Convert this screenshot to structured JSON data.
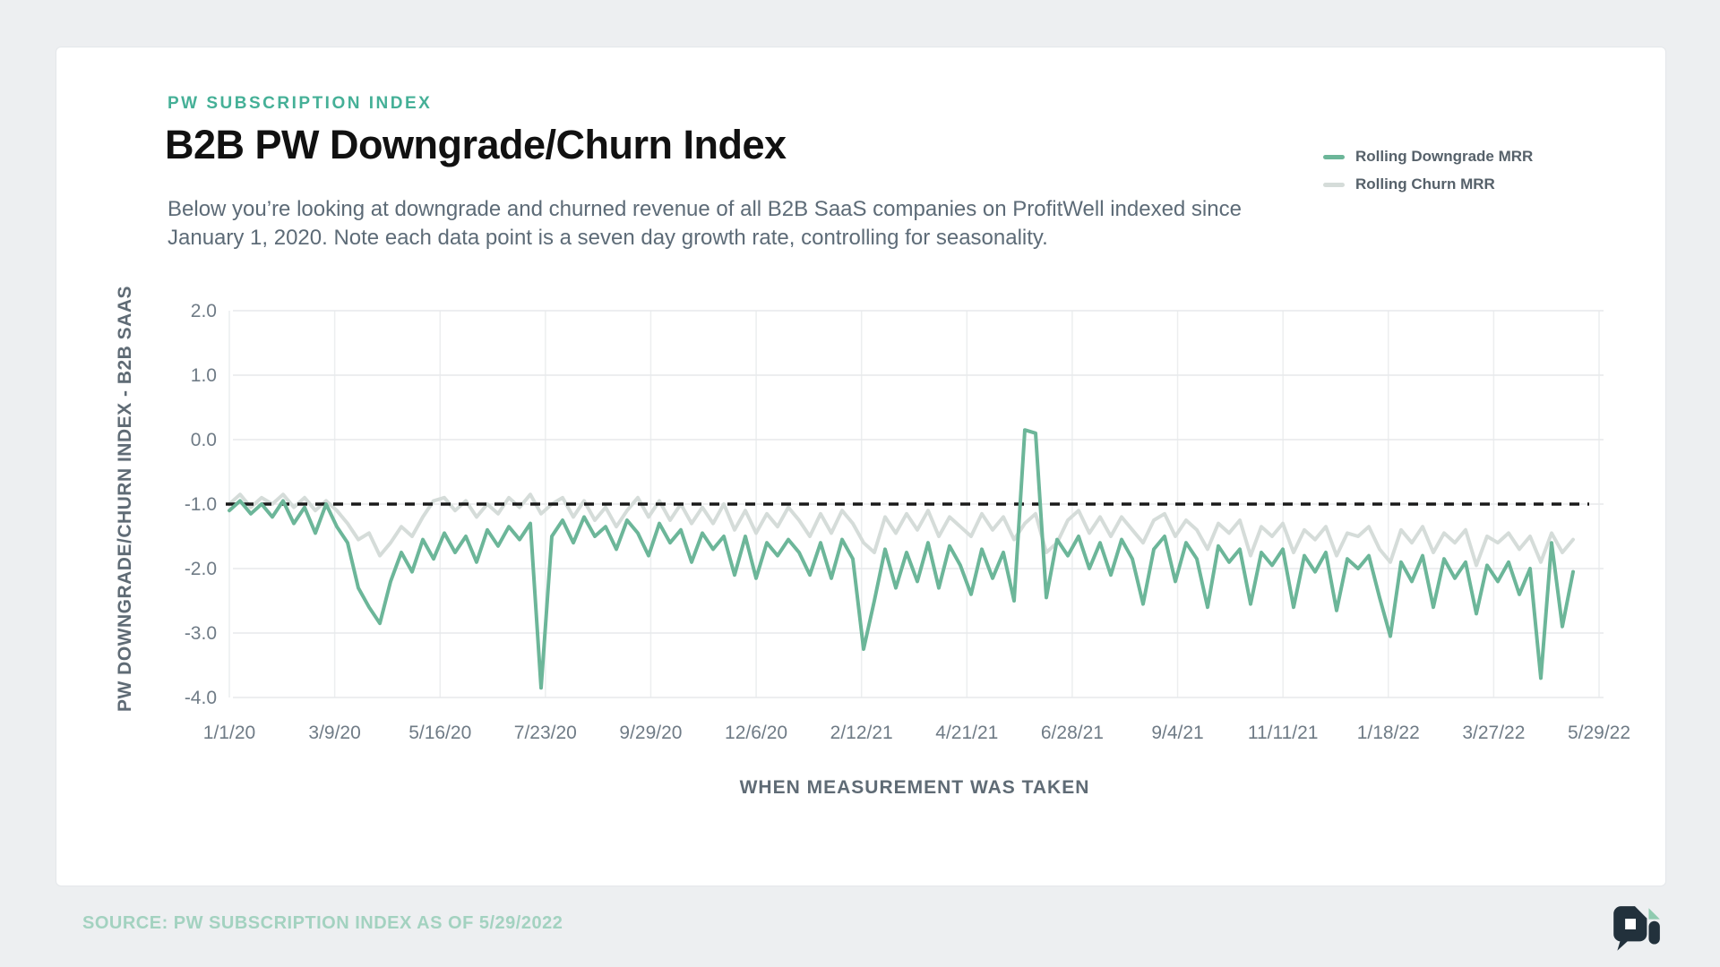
{
  "header": {
    "eyebrow": "PW SUBSCRIPTION INDEX",
    "title": "B2B PW Downgrade/Churn Index",
    "subtitle": "Below you’re looking at downgrade and churned revenue of all B2B SaaS companies on ProfitWell indexed since January 1, 2020. Note each data point is a seven day growth rate, controlling for seasonality."
  },
  "legend": {
    "items": [
      {
        "label": "Rolling Downgrade MRR",
        "color": "#6cb699"
      },
      {
        "label": "Rolling Churn MRR",
        "color": "#d5dcd9"
      }
    ]
  },
  "footer": {
    "source": "SOURCE: PW SUBSCRIPTION INDEX AS OF 5/29/2022",
    "logo": "profitwell-pi-logo"
  },
  "colors": {
    "accent_teal": "#45b097",
    "downgrade_line": "#6cb699",
    "churn_line": "#d5dcd9",
    "gridline": "#e7e9eb",
    "vertical_gridline": "#eceeef",
    "reference_line": "#1a1a1a",
    "source_text": "#a3d2c0",
    "logo_dark": "#22313c",
    "logo_teal": "#8fcbb0"
  },
  "chart_data": {
    "type": "line",
    "title": "B2B PW Downgrade/Churn Index",
    "xlabel": "WHEN MEASUREMENT WAS TAKEN",
    "ylabel": "PW DOWNGRADE/CHURN INDEX - B2B SAAS",
    "x_range_note": "weekly data points from 1/1/20 through 5/29/22",
    "x_tick_labels": [
      "1/1/20",
      "3/9/20",
      "5/16/20",
      "7/23/20",
      "9/29/20",
      "12/6/20",
      "2/12/21",
      "4/21/21",
      "6/28/21",
      "9/4/21",
      "11/11/21",
      "1/18/22",
      "3/27/22",
      "5/29/22"
    ],
    "y_ticks": [
      2.0,
      1.0,
      0.0,
      -1.0,
      -2.0,
      -3.0,
      -4.0
    ],
    "ylim": [
      -4.3,
      2.4
    ],
    "grid": "horizontal-and-vertical",
    "legend_position": "top-right",
    "reference_line": {
      "value": -1.0,
      "style": "dashed",
      "color": "#1a1a1a"
    },
    "series": [
      {
        "name": "Rolling Downgrade MRR",
        "color": "#6cb699",
        "values": [
          -1.1,
          -0.95,
          -1.15,
          -1.0,
          -1.2,
          -0.95,
          -1.3,
          -1.05,
          -1.45,
          -1.0,
          -1.35,
          -1.6,
          -2.3,
          -2.6,
          -2.85,
          -2.2,
          -1.75,
          -2.05,
          -1.55,
          -1.85,
          -1.45,
          -1.75,
          -1.5,
          -1.9,
          -1.4,
          -1.65,
          -1.35,
          -1.55,
          -1.3,
          -3.85,
          -1.5,
          -1.25,
          -1.6,
          -1.2,
          -1.5,
          -1.35,
          -1.7,
          -1.25,
          -1.45,
          -1.8,
          -1.3,
          -1.6,
          -1.4,
          -1.9,
          -1.45,
          -1.7,
          -1.5,
          -2.1,
          -1.5,
          -2.15,
          -1.6,
          -1.8,
          -1.55,
          -1.75,
          -2.1,
          -1.6,
          -2.15,
          -1.55,
          -1.85,
          -3.25,
          -2.5,
          -1.7,
          -2.3,
          -1.75,
          -2.2,
          -1.6,
          -2.3,
          -1.65,
          -1.95,
          -2.4,
          -1.7,
          -2.15,
          -1.75,
          -2.5,
          0.15,
          0.1,
          -2.45,
          -1.55,
          -1.8,
          -1.5,
          -2.0,
          -1.6,
          -2.1,
          -1.55,
          -1.85,
          -2.55,
          -1.7,
          -1.5,
          -2.2,
          -1.6,
          -1.85,
          -2.6,
          -1.65,
          -1.9,
          -1.7,
          -2.55,
          -1.75,
          -1.95,
          -1.7,
          -2.6,
          -1.8,
          -2.05,
          -1.75,
          -2.65,
          -1.85,
          -2.0,
          -1.8,
          -2.45,
          -3.05,
          -1.9,
          -2.2,
          -1.8,
          -2.6,
          -1.85,
          -2.15,
          -1.9,
          -2.7,
          -1.95,
          -2.2,
          -1.9,
          -2.4,
          -2.0,
          -3.7,
          -1.6,
          -2.9,
          -2.05
        ]
      },
      {
        "name": "Rolling Churn MRR",
        "color": "#d5dcd9",
        "values": [
          -1.0,
          -0.85,
          -1.05,
          -0.9,
          -1.0,
          -0.85,
          -1.05,
          -0.9,
          -1.1,
          -0.95,
          -1.1,
          -1.3,
          -1.55,
          -1.45,
          -1.8,
          -1.6,
          -1.35,
          -1.5,
          -1.2,
          -0.95,
          -0.9,
          -1.1,
          -0.95,
          -1.2,
          -1.0,
          -1.15,
          -0.9,
          -1.05,
          -0.85,
          -1.15,
          -1.0,
          -0.9,
          -1.2,
          -0.95,
          -1.25,
          -1.05,
          -1.35,
          -1.1,
          -0.9,
          -1.2,
          -0.95,
          -1.25,
          -1.0,
          -1.3,
          -1.05,
          -1.3,
          -1.0,
          -1.4,
          -1.1,
          -1.45,
          -1.15,
          -1.35,
          -1.05,
          -1.25,
          -1.5,
          -1.15,
          -1.45,
          -1.1,
          -1.3,
          -1.6,
          -1.75,
          -1.2,
          -1.45,
          -1.15,
          -1.4,
          -1.1,
          -1.5,
          -1.2,
          -1.35,
          -1.5,
          -1.15,
          -1.4,
          -1.2,
          -1.55,
          -1.3,
          -1.15,
          -1.75,
          -1.6,
          -1.25,
          -1.1,
          -1.45,
          -1.2,
          -1.5,
          -1.2,
          -1.4,
          -1.6,
          -1.25,
          -1.15,
          -1.5,
          -1.25,
          -1.4,
          -1.7,
          -1.3,
          -1.45,
          -1.25,
          -1.8,
          -1.35,
          -1.5,
          -1.3,
          -1.75,
          -1.4,
          -1.55,
          -1.35,
          -1.8,
          -1.45,
          -1.5,
          -1.35,
          -1.7,
          -1.9,
          -1.4,
          -1.6,
          -1.35,
          -1.75,
          -1.45,
          -1.6,
          -1.4,
          -1.95,
          -1.5,
          -1.6,
          -1.45,
          -1.7,
          -1.5,
          -1.9,
          -1.45,
          -1.75,
          -1.55
        ]
      }
    ]
  }
}
